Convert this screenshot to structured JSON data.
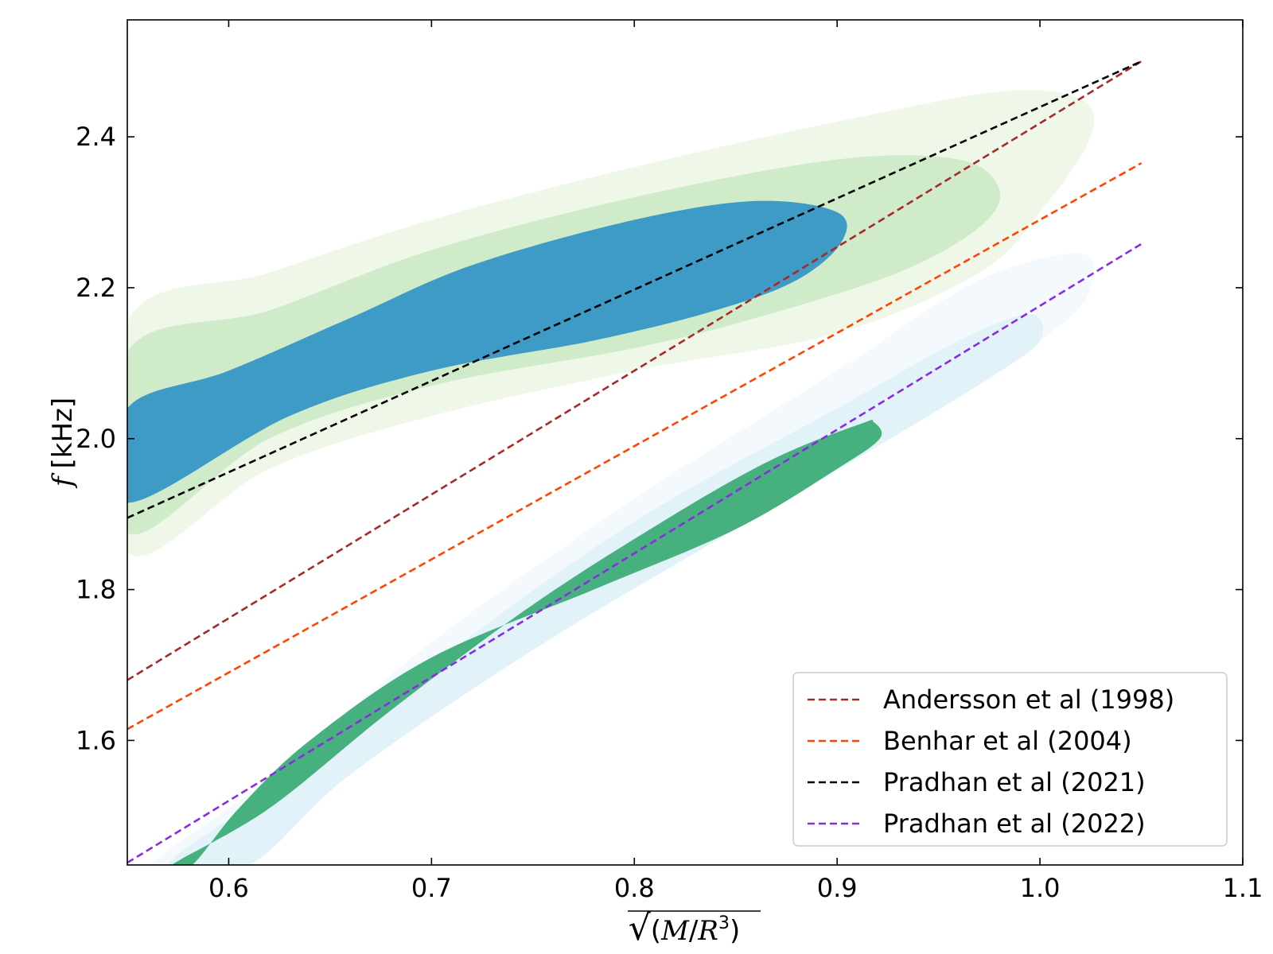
{
  "chart_data": {
    "type": "line",
    "title": "",
    "xlabel": "√(M/R³)",
    "ylabel": "f [kHz]",
    "ylabel_symbol": "f",
    "ylabel_unit": "[kHz]",
    "xlabel_parts": {
      "radical": "√",
      "open": "(",
      "m": "M",
      "slash": "/",
      "r": "R",
      "exp": "3",
      "close": ")"
    },
    "xlim": [
      0.55,
      1.1
    ],
    "ylim": [
      1.435,
      2.555
    ],
    "x_ticks": [
      0.6,
      0.7,
      0.8,
      0.9,
      1.0,
      1.1
    ],
    "x_tick_labels": [
      "0.6",
      "0.7",
      "0.8",
      "0.9",
      "1.0",
      "1.1"
    ],
    "y_ticks": [
      1.6,
      1.8,
      2.0,
      2.2,
      2.4
    ],
    "y_tick_labels": [
      "1.6",
      "1.8",
      "2.0",
      "2.2",
      "2.4"
    ],
    "grid": false,
    "legend_position": "bottom-right",
    "series": [
      {
        "name": "Andersson et al (1998)",
        "color": "#a52a2a",
        "style": "dashed",
        "x": [
          0.55,
          1.05
        ],
        "y": [
          1.68,
          2.5
        ]
      },
      {
        "name": "Benhar et al (2004)",
        "color": "#ff4500",
        "style": "dashed",
        "x": [
          0.55,
          1.05
        ],
        "y": [
          1.615,
          2.365
        ]
      },
      {
        "name": "Pradhan et al (2021)",
        "color": "#000000",
        "style": "dashed",
        "x": [
          0.55,
          1.05
        ],
        "y": [
          1.895,
          2.5
        ]
      },
      {
        "name": "Pradhan et al (2022)",
        "color": "#8a2be2",
        "style": "dashed",
        "x": [
          0.55,
          1.05
        ],
        "y": [
          1.438,
          2.258
        ]
      }
    ],
    "contours": [
      {
        "name": "upper-outer",
        "color": "#eff8e8",
        "points": [
          [
            0.55,
            2.155
          ],
          [
            0.62,
            2.22
          ],
          [
            0.7,
            2.29
          ],
          [
            0.8,
            2.36
          ],
          [
            0.9,
            2.42
          ],
          [
            0.98,
            2.46
          ],
          [
            1.02,
            2.45
          ],
          [
            1.025,
            2.4
          ],
          [
            1.0,
            2.3
          ],
          [
            0.97,
            2.22
          ],
          [
            0.9,
            2.14
          ],
          [
            0.8,
            2.09
          ],
          [
            0.7,
            2.03
          ],
          [
            0.62,
            1.96
          ],
          [
            0.55,
            1.85
          ]
        ]
      },
      {
        "name": "upper-middle",
        "color": "#d0ebca",
        "points": [
          [
            0.55,
            2.115
          ],
          [
            0.62,
            2.17
          ],
          [
            0.7,
            2.25
          ],
          [
            0.8,
            2.32
          ],
          [
            0.9,
            2.37
          ],
          [
            0.96,
            2.37
          ],
          [
            0.98,
            2.33
          ],
          [
            0.97,
            2.28
          ],
          [
            0.93,
            2.22
          ],
          [
            0.86,
            2.16
          ],
          [
            0.8,
            2.12
          ],
          [
            0.7,
            2.07
          ],
          [
            0.62,
            2.0
          ],
          [
            0.55,
            1.875
          ]
        ]
      },
      {
        "name": "upper-inner",
        "color": "#3e9bc6",
        "points": [
          [
            0.55,
            2.04
          ],
          [
            0.6,
            2.09
          ],
          [
            0.66,
            2.16
          ],
          [
            0.72,
            2.23
          ],
          [
            0.8,
            2.29
          ],
          [
            0.86,
            2.315
          ],
          [
            0.9,
            2.3
          ],
          [
            0.902,
            2.26
          ],
          [
            0.88,
            2.21
          ],
          [
            0.84,
            2.17
          ],
          [
            0.78,
            2.13
          ],
          [
            0.7,
            2.09
          ],
          [
            0.63,
            2.03
          ],
          [
            0.55,
            1.915
          ]
        ]
      },
      {
        "name": "lower-outer",
        "color": "#f3f9fc",
        "points": [
          [
            0.562,
            1.435
          ],
          [
            0.62,
            1.55
          ],
          [
            0.7,
            1.73
          ],
          [
            0.8,
            1.92
          ],
          [
            0.9,
            2.09
          ],
          [
            0.97,
            2.21
          ],
          [
            1.02,
            2.245
          ],
          [
            1.025,
            2.2
          ],
          [
            1.01,
            2.15
          ],
          [
            0.96,
            2.06
          ],
          [
            0.9,
            1.97
          ],
          [
            0.8,
            1.82
          ],
          [
            0.7,
            1.65
          ],
          [
            0.63,
            1.525
          ],
          [
            0.59,
            1.435
          ]
        ]
      },
      {
        "name": "lower-middle",
        "color": "#e1f2f8",
        "points": [
          [
            0.57,
            1.435
          ],
          [
            0.63,
            1.55
          ],
          [
            0.7,
            1.7
          ],
          [
            0.8,
            1.89
          ],
          [
            0.9,
            2.04
          ],
          [
            0.96,
            2.13
          ],
          [
            0.995,
            2.165
          ],
          [
            1.0,
            2.13
          ],
          [
            0.975,
            2.08
          ],
          [
            0.92,
            1.99
          ],
          [
            0.85,
            1.88
          ],
          [
            0.75,
            1.72
          ],
          [
            0.66,
            1.555
          ],
          [
            0.61,
            1.435
          ]
        ]
      },
      {
        "name": "lower-inner",
        "color": "#46b17e",
        "points": [
          [
            0.572,
            1.435
          ],
          [
            0.62,
            1.51
          ],
          [
            0.68,
            1.64
          ],
          [
            0.75,
            1.78
          ],
          [
            0.82,
            1.9
          ],
          [
            0.87,
            1.975
          ],
          [
            0.912,
            2.02
          ],
          [
            0.918,
            2.022
          ],
          [
            0.921,
            2.0
          ],
          [
            0.9,
            1.96
          ],
          [
            0.85,
            1.88
          ],
          [
            0.78,
            1.8
          ],
          [
            0.7,
            1.71
          ],
          [
            0.64,
            1.6
          ],
          [
            0.605,
            1.51
          ],
          [
            0.582,
            1.435
          ]
        ]
      }
    ]
  }
}
